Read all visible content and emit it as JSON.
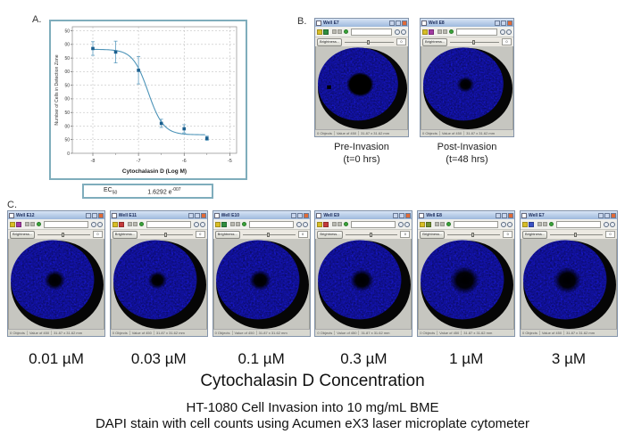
{
  "figure": {
    "panelA_label": "A.",
    "panelB_label": "B.",
    "panelC_label": "C.",
    "concentration_axis_label": "Cytochalasin D Concentration",
    "caption_line1": "HT-1080 Cell Invasion into 10 mg/mL BME",
    "caption_line2": "DAPI stain with cell counts using Acumen eX3 laser microplate cytometer"
  },
  "ec50": {
    "label": "EC",
    "sub": "50",
    "value": "1.6292 e",
    "exp": "-007"
  },
  "chart_data": {
    "type": "scatter",
    "title": "",
    "xlabel": "Cytochalasin D (Log M)",
    "ylabel": "Number of Cells in Detection Zone",
    "x": [
      -8,
      -7.5,
      -7,
      -6.5,
      -6,
      -5.5
    ],
    "y": [
      385,
      372,
      305,
      110,
      90,
      55
    ],
    "yerr": [
      25,
      40,
      50,
      15,
      15,
      8
    ],
    "xlim": [
      -8.45,
      -4.85
    ],
    "ylim": [
      0,
      465
    ],
    "xticks": [
      -8,
      -7,
      -6,
      -5
    ],
    "xminorticks": [
      -7.5,
      -6.5,
      -5.5
    ],
    "ytick_values": [
      450,
      400,
      350,
      300,
      250,
      200,
      150,
      100,
      50,
      0
    ],
    "ytick_display": [
      "50",
      "00",
      "50",
      "00",
      "50",
      "00",
      "50",
      "00",
      "50",
      "0"
    ],
    "grid": true,
    "legend": false,
    "curve_fit": {
      "top": 382,
      "bottom": 68,
      "logEC50": -6.788,
      "hill": 2.6
    },
    "ec50_annotation": "EC50 = 1.6292 e-007",
    "point_color": "#1b5f8e",
    "errorbar_color": "#5e9dc0",
    "curve_color": "#4d94b8"
  },
  "window_chrome": {
    "brightness_button": "Brightness...",
    "slider_value": "0",
    "status_left": "0 Objects",
    "status_mid": "Value of 450",
    "status_right": "31.87 x 31.62 mm",
    "titlebar_buttons": [
      "minimize",
      "maximize",
      "close"
    ]
  },
  "panelB_wells": [
    {
      "title": "Well E7",
      "icon2_color": "#2f8e3f",
      "spot_radius": 15,
      "sharp_spot": true,
      "debris": true,
      "caption1": "Pre-Invasion",
      "caption2": "(t=0 hrs)"
    },
    {
      "title": "Well E8",
      "icon2_color": "#a23aa2",
      "spot_radius": 9.5,
      "sharp_spot": false,
      "debris": false,
      "caption1": "Post-Invasion",
      "caption2": "(t=48 hrs)"
    }
  ],
  "panelC_wells": [
    {
      "title": "Well E12",
      "icon2_color": "#a23aa2",
      "spot_radius": 11,
      "conc": "0.01 µM"
    },
    {
      "title": "Well E11",
      "icon2_color": "#c43a3a",
      "spot_radius": 10,
      "conc": "0.03 µM"
    },
    {
      "title": "Well E10",
      "icon2_color": "#2f8e3f",
      "spot_radius": 11.5,
      "conc": "0.1 µM"
    },
    {
      "title": "Well E9",
      "icon2_color": "#c43a3a",
      "spot_radius": 12.5,
      "conc": "0.3 µM"
    },
    {
      "title": "Well E8",
      "icon2_color": "#6f8e2f",
      "spot_radius": 15.5,
      "conc": "1 µM"
    },
    {
      "title": "Well E7",
      "icon2_color": "#3a52c4",
      "spot_radius": 14.5,
      "conc": "3 µM"
    }
  ],
  "colors": {
    "chart_border": "#7fadbc",
    "well_blue": "#1717cd",
    "well_black": "#060606",
    "close_button": "#e06a38"
  }
}
